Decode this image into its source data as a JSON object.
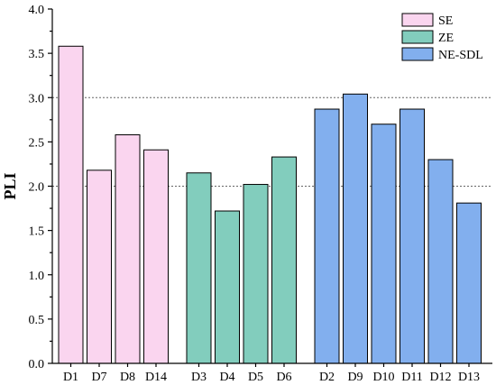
{
  "chart_data": {
    "type": "bar",
    "title": "",
    "xlabel": "",
    "ylabel": "PLI",
    "ylim": [
      0,
      4.0
    ],
    "yticks": [
      0.0,
      0.5,
      1.0,
      1.5,
      2.0,
      2.5,
      3.0,
      3.5,
      4.0
    ],
    "ytick_labels": [
      "0.0",
      "0.5",
      "1.0",
      "1.5",
      "2.0",
      "2.5",
      "3.0",
      "3.5",
      "4.0"
    ],
    "reference_lines": [
      2.0,
      3.0
    ],
    "grid": false,
    "legend_position": "top-right",
    "series": [
      {
        "name": "SE",
        "color": "#FAD5EF",
        "categories": [
          "D1",
          "D7",
          "D8",
          "D14"
        ],
        "values": [
          3.58,
          2.18,
          2.58,
          2.41
        ]
      },
      {
        "name": "ZE",
        "color": "#82CDBD",
        "categories": [
          "D3",
          "D4",
          "D5",
          "D6"
        ],
        "values": [
          2.15,
          1.72,
          2.02,
          2.33
        ]
      },
      {
        "name": "NE-SDL",
        "color": "#82AFEE",
        "categories": [
          "D2",
          "D9",
          "D10",
          "D11",
          "D12",
          "D13"
        ],
        "values": [
          2.87,
          3.04,
          2.7,
          2.87,
          2.3,
          1.81
        ]
      }
    ]
  }
}
